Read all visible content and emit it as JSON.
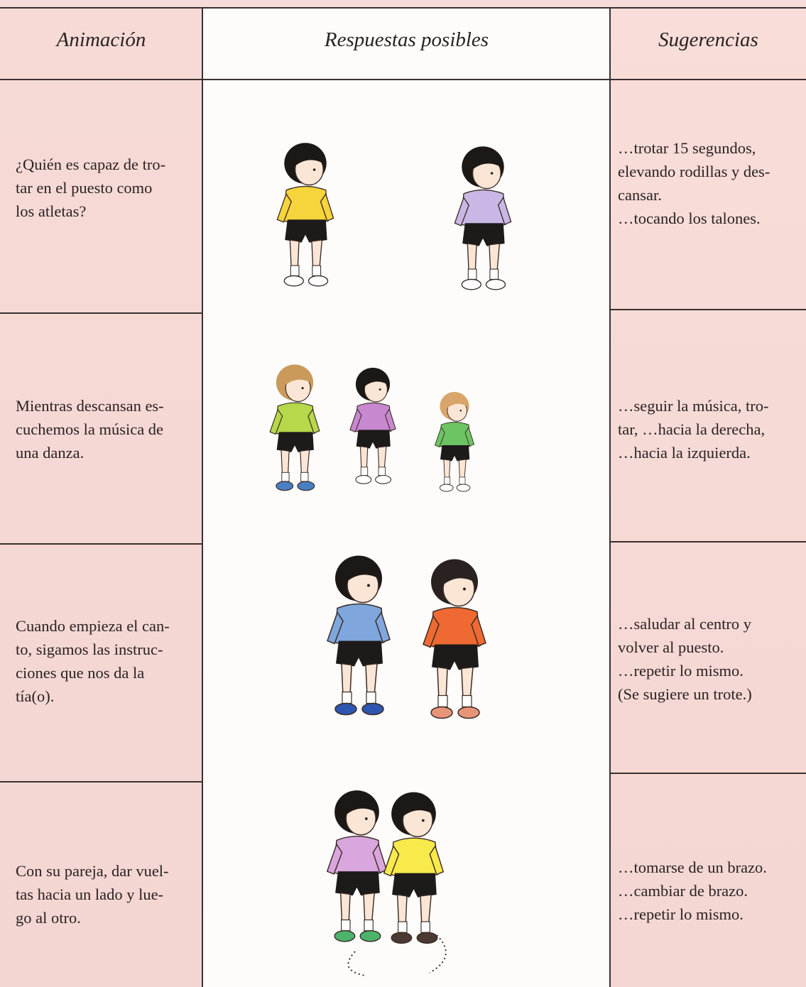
{
  "table": {
    "header": [
      "Animación",
      "Respuestas posibles",
      "Sugerencias"
    ],
    "rows": [
      {
        "animacion": [
          "¿Quién es capaz de tro-",
          "tar en el puesto como",
          "los atletas?"
        ],
        "sugerencias": [
          "…trotar 15 segundos,",
          "elevando rodillas y des-",
          "cansar.",
          "…tocando los talones."
        ]
      },
      {
        "animacion": [
          "Mientras descansan es-",
          "cuchemos la música de",
          "una danza."
        ],
        "sugerencias": [
          "…seguir la música, tro-",
          "tar, …hacia la derecha,",
          "…hacia la izquierda."
        ]
      },
      {
        "animacion": [
          "Cuando empieza el can-",
          "to, sigamos las instruc-",
          "ciones que nos da la",
          "tía(o)."
        ],
        "sugerencias": [
          "…saludar al centro y",
          "volver al puesto.",
          "…repetir lo mismo.",
          "(Se sugiere un trote.)"
        ]
      },
      {
        "animacion": [
          "Con su pareja, dar vuel-",
          "tas hacia un lado y lue-",
          "go al otro."
        ],
        "sugerencias": [
          "…tomarse de un brazo.",
          "…cambiar de brazo.",
          "…repetir lo mismo."
        ]
      }
    ]
  }
}
